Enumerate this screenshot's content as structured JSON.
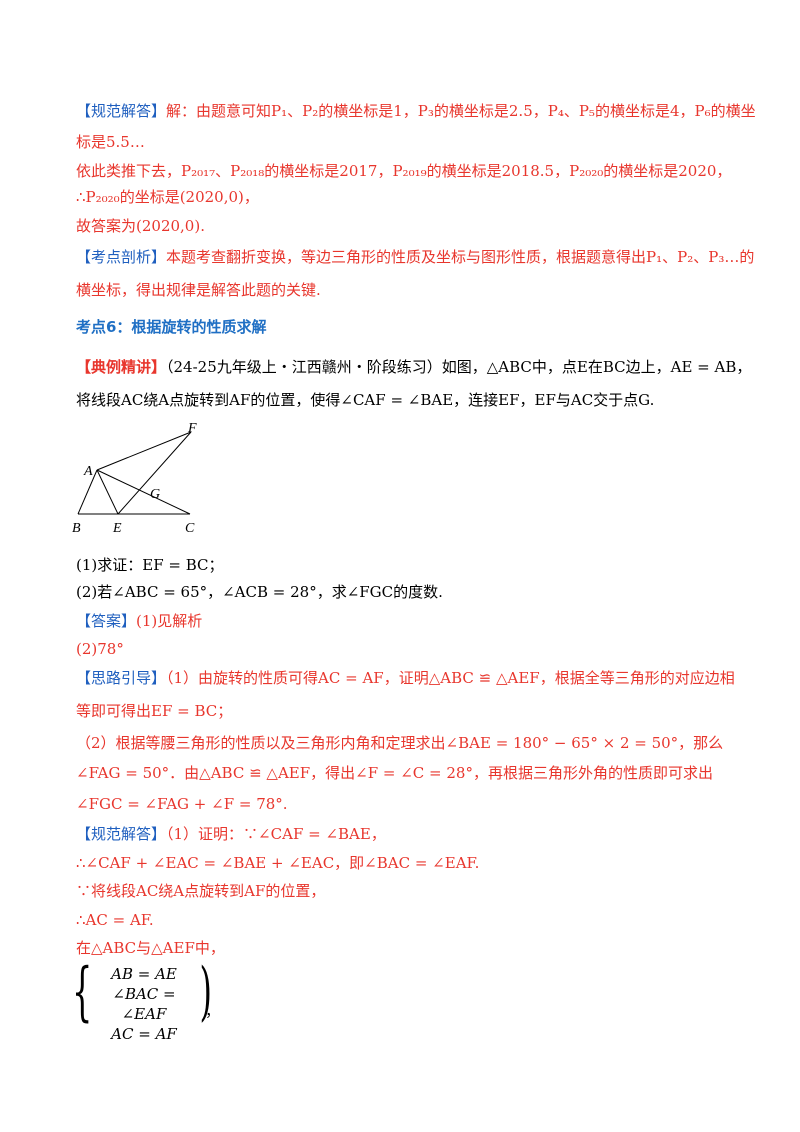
{
  "lines": [
    {
      "tag": "【规范解答】",
      "text": "解：由题意可知P₁、P₂的横坐标是1，P₃的横坐标是2.5，P₄、P₅的横坐标是4，P₆的横坐"
    },
    {
      "text": "标是5.5…"
    },
    {
      "text": "依此类推下去，P₂₀₁₇、P₂₀₁₈的横坐标是2017，P₂₀₁₉的横坐标是2018.5，P₂₀₂₀的横坐标是2020，"
    },
    {
      "text": "∴P₂₀₂₀的坐标是(2020,0)，"
    },
    {
      "text": "故答案为(2020,0)."
    },
    {
      "tag": "【考点剖析】",
      "text": "本题考查翻折变换，等边三角形的性质及坐标与图形性质，根据题意得出P₁、P₂、P₃…的"
    },
    {
      "text": "横坐标，得出规律是解答此题的关键."
    },
    {
      "text": "考点6：根据旋转的性质求解"
    },
    {
      "tag": "【典例精讲】",
      "text": "（24-25九年级上・江西赣州・阶段练习）如图，△ABC中，点E在BC边上，AE = AB，"
    },
    {
      "text": "将线段AC绕A点旋转到AF的位置，使得∠CAF = ∠BAE，连接EF，EF与AC交于点G."
    },
    {
      "text": "(1)求证：EF = BC；"
    },
    {
      "text": "(2)若∠ABC = 65°，∠ACB = 28°，求∠FGC的度数."
    },
    {
      "tag": "【答案】",
      "text": "(1)见解析"
    },
    {
      "text": "(2)78°"
    },
    {
      "tag": "【思路引导】",
      "text": "（1）由旋转的性质可得AC = AF，证明△ABC ≌ △AEF，根据全等三角形的对应边相"
    },
    {
      "text": "等即可得出EF = BC；"
    },
    {
      "text": "（2）根据等腰三角形的性质以及三角形内角和定理求出∠BAE = 180° − 65° × 2 = 50°，那么"
    },
    {
      "text": "∠FAG = 50°．由△ABC ≌ △AEF，得出∠F = ∠C = 28°，再根据三角形外角的性质即可求出"
    },
    {
      "text": "∠FGC = ∠FAG + ∠F = 78°."
    },
    {
      "tag": "【规范解答】",
      "text": "（1）证明：∵∠CAF = ∠BAE，"
    },
    {
      "text": "∴∠CAF + ∠EAC = ∠BAE + ∠EAC，即∠BAC = ∠EAF."
    },
    {
      "text": "∵将线段AC绕A点旋转到AF的位置，"
    },
    {
      "text": "∴AC = AF."
    },
    {
      "text": "在△ABC与△AEF中，"
    }
  ],
  "system": {
    "rows": [
      "AB = AE",
      "∠BAC = ∠EAF",
      "AC = AF"
    ],
    "tail": "，"
  },
  "figure": {
    "labels": {
      "F": "F",
      "A": "A",
      "G": "G",
      "B": "B",
      "E": "E",
      "C": "C"
    }
  }
}
